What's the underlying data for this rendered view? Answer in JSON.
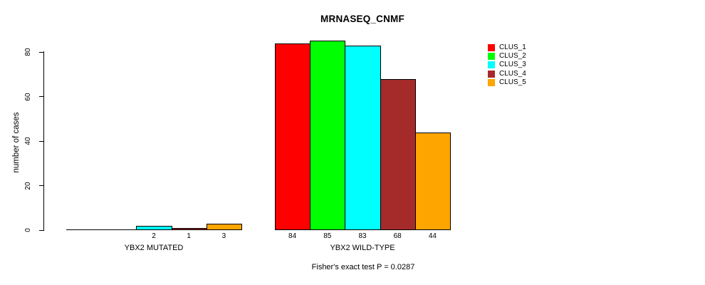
{
  "chart_data": {
    "type": "bar",
    "title": "MRNASEQ_CNMF",
    "ylabel": "number of cases",
    "xlabel": "",
    "annotation": "Fisher's exact test P = 0.0287",
    "yticks": [
      0,
      20,
      40,
      60,
      80
    ],
    "ylim": [
      0,
      85
    ],
    "grid": false,
    "legend_position": "top-right",
    "series_names": [
      "CLUS_1",
      "CLUS_2",
      "CLUS_3",
      "CLUS_4",
      "CLUS_5"
    ],
    "colors": [
      "#FF0000",
      "#00FF00",
      "#00FFFF",
      "#A52A2A",
      "#FFA500"
    ],
    "groups": [
      {
        "label": "YBX2 MUTATED",
        "values": [
          0,
          0,
          2,
          1,
          3
        ]
      },
      {
        "label": "YBX2 WILD-TYPE",
        "values": [
          84,
          85,
          83,
          68,
          44
        ]
      }
    ],
    "show_zero_value_labels": false
  }
}
